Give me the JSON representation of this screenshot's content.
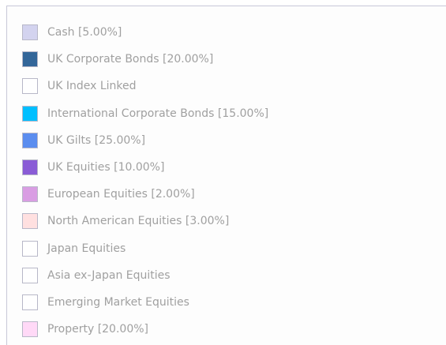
{
  "legend": {
    "items": [
      {
        "label": "Cash [5.00%]",
        "color": "#d3d3ef"
      },
      {
        "label": "UK Corporate Bonds [20.00%]",
        "color": "#336699"
      },
      {
        "label": "UK Index Linked",
        "color": "#ffffff"
      },
      {
        "label": "International Corporate Bonds [15.00%]",
        "color": "#00bfff"
      },
      {
        "label": "UK Gilts [25.00%]",
        "color": "#5b8def"
      },
      {
        "label": "UK Equities [10.00%]",
        "color": "#8a5cd6"
      },
      {
        "label": "European Equities [2.00%]",
        "color": "#d99de3"
      },
      {
        "label": "North American Equities [3.00%]",
        "color": "#ffe0e0"
      },
      {
        "label": "Japan Equities",
        "color": "#ffffff"
      },
      {
        "label": "Asia ex-Japan Equities",
        "color": "#ffffff"
      },
      {
        "label": "Emerging Market Equities",
        "color": "#ffffff"
      },
      {
        "label": "Property [20.00%]",
        "color": "#ffd9f7"
      }
    ]
  }
}
